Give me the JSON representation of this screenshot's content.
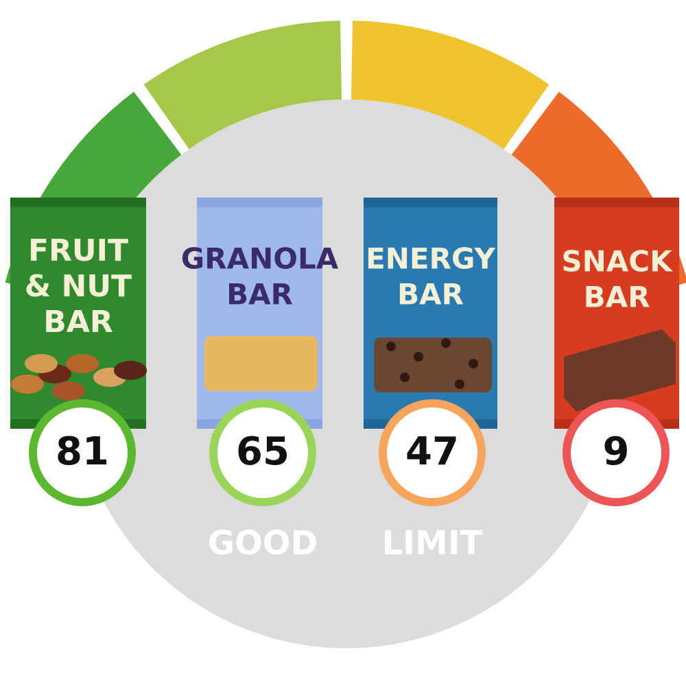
{
  "items": [
    {
      "name_lines": [
        "FRUIT",
        "& NUT",
        "BAR"
      ],
      "score": "81"
    },
    {
      "name_lines": [
        "GRANOLA",
        "BAR"
      ],
      "score": "65",
      "label": "GOOD"
    },
    {
      "name_lines": [
        "ENERGY",
        "BAR"
      ],
      "score": "47",
      "label": "LIMIT"
    },
    {
      "name_lines": [
        "SNACK",
        "BAR"
      ],
      "score": "9"
    }
  ]
}
